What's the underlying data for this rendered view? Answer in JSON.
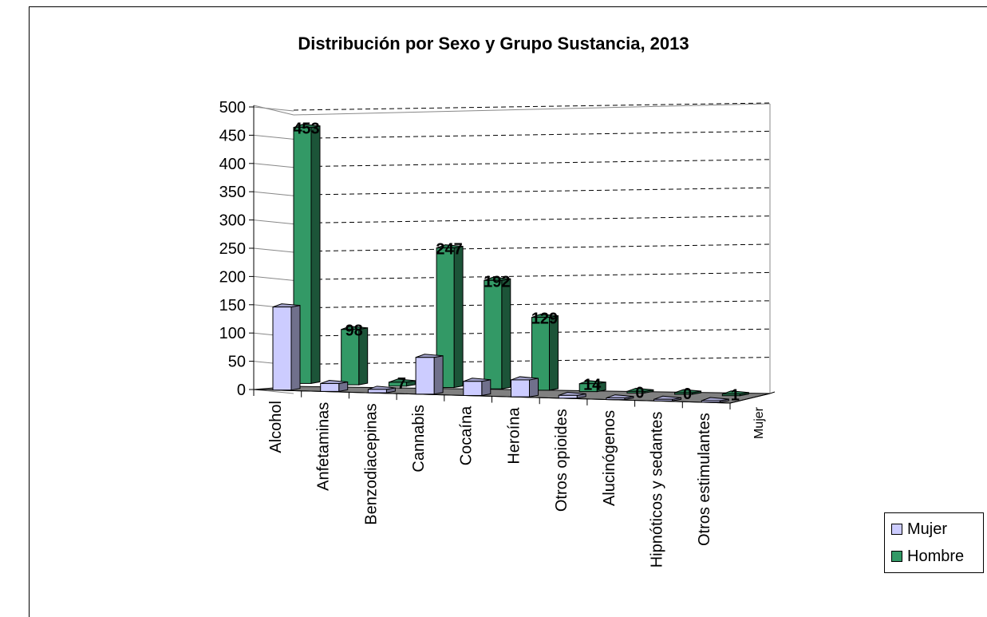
{
  "chart_data": {
    "type": "bar",
    "title": "Distribución por Sexo y Grupo Sustancia, 2013",
    "categories": [
      "Alcohol",
      "Anfetaminas",
      "Benzodiacepinas",
      "Cannabis",
      "Cocaína",
      "Heroína",
      "Otros opioides",
      "Alucinógenos",
      "Hipnóticos y sedantes",
      "Otros estimulantes"
    ],
    "series": [
      {
        "name": "Mujer",
        "values": [
          147,
          14,
          6,
          65,
          25,
          30,
          5,
          1,
          1,
          1
        ],
        "color": "#ccccff"
      },
      {
        "name": "Hombre",
        "values": [
          453,
          98,
          7,
          247,
          192,
          129,
          14,
          0,
          0,
          1
        ],
        "color": "#339966"
      }
    ],
    "data_labels": [
      "453",
      "98",
      "7",
      "247",
      "192",
      "129",
      "14",
      "0",
      "0",
      "1"
    ],
    "y_ticks": [
      "0",
      "50",
      "100",
      "150",
      "200",
      "250",
      "300",
      "350",
      "400",
      "450",
      "500"
    ],
    "ylim": [
      0,
      500
    ],
    "depth_axis_label": "Mujer",
    "grid": true,
    "legend_position": "bottom-right"
  }
}
